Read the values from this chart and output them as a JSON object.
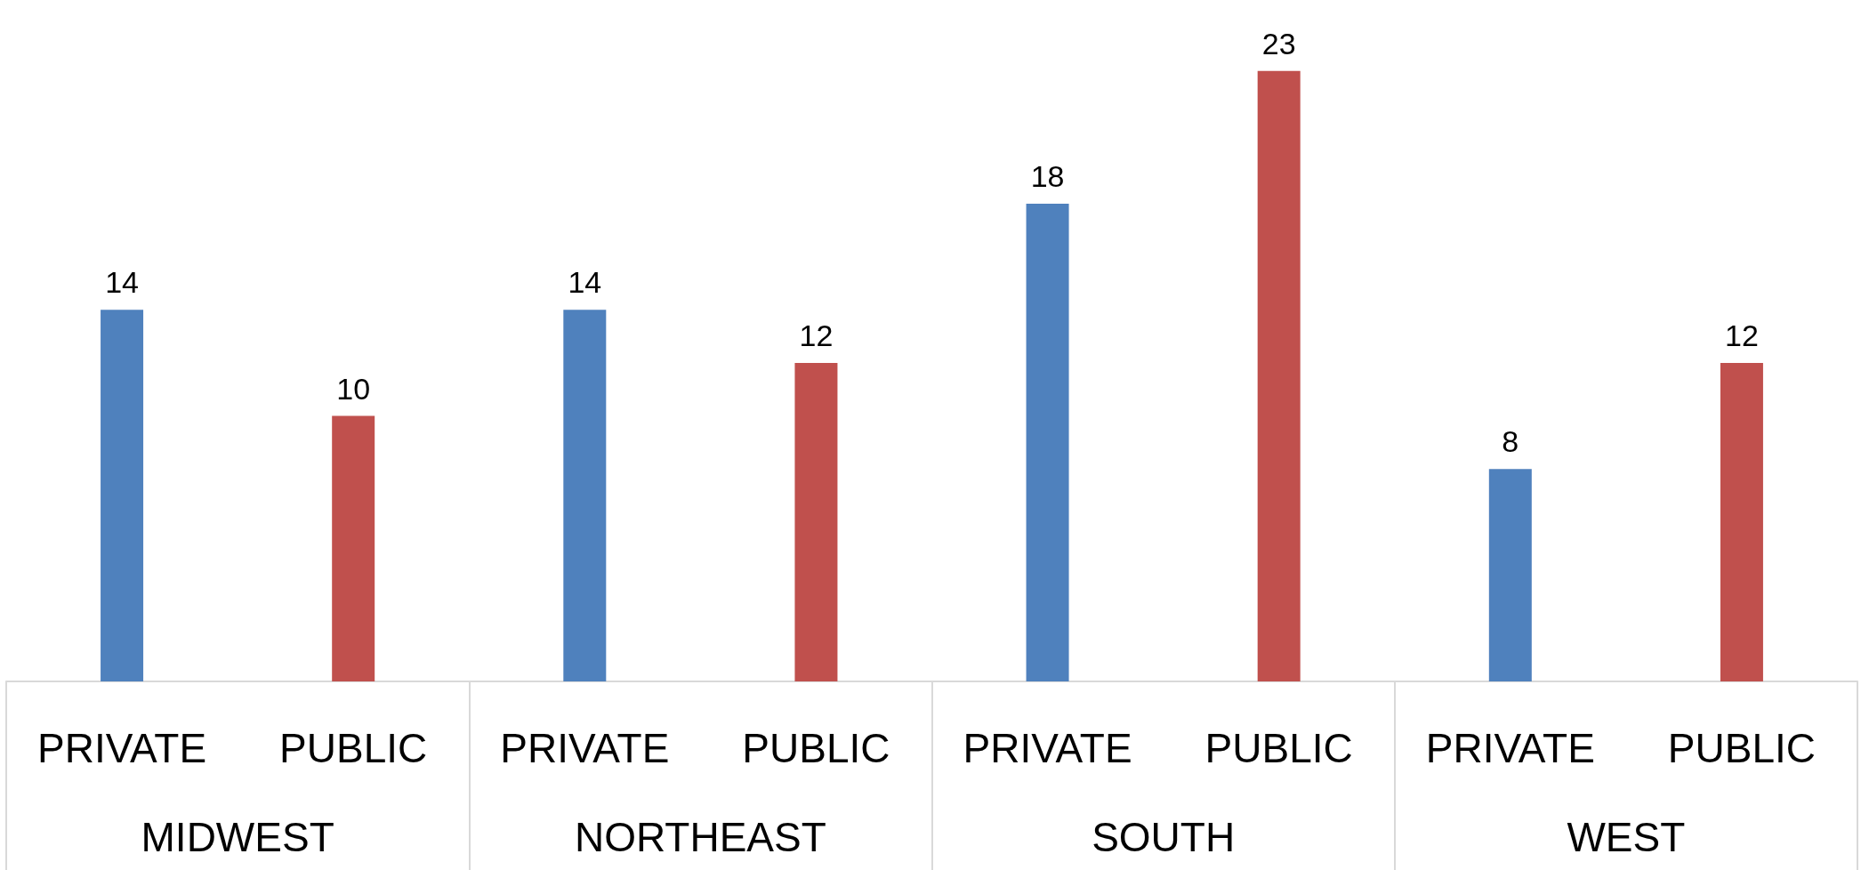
{
  "chart_data": {
    "type": "bar",
    "categories": [
      "PRIVATE",
      "PUBLIC",
      "PRIVATE",
      "PUBLIC",
      "PRIVATE",
      "PUBLIC",
      "PRIVATE",
      "PUBLIC"
    ],
    "values": [
      14,
      10,
      14,
      12,
      18,
      23,
      8,
      12
    ],
    "colors": [
      "#4f81bd",
      "#c0504d",
      "#4f81bd",
      "#c0504d",
      "#4f81bd",
      "#c0504d",
      "#4f81bd",
      "#c0504d"
    ],
    "annotations": [
      "MIDWEST",
      "NORTHEAST",
      "SOUTH",
      "WEST"
    ],
    "data_labels": true
  }
}
